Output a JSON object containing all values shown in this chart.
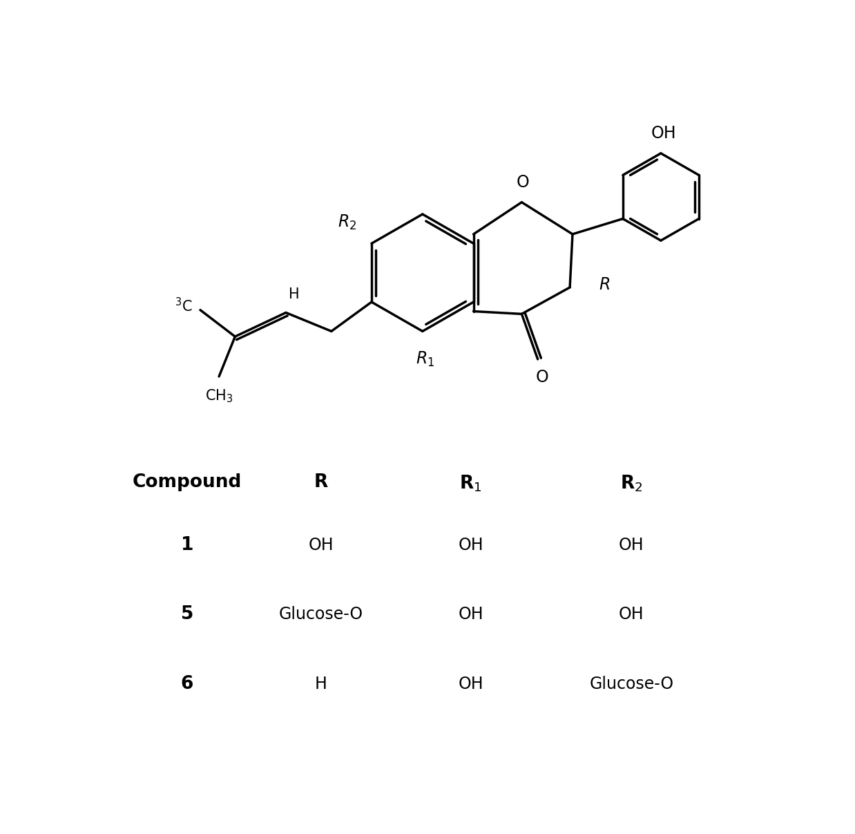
{
  "background_color": "#ffffff",
  "line_color": "#000000",
  "line_width": 2.5,
  "table_header_bold": [
    "Compound",
    "R",
    "R1",
    "R2"
  ],
  "table_rows": [
    [
      "1",
      "OH",
      "OH",
      "OH"
    ],
    [
      "5",
      "Glucose-O",
      "OH",
      "OH"
    ],
    [
      "6",
      "H",
      "OH",
      "Glucose-O"
    ]
  ],
  "structure_scale": 1.0
}
